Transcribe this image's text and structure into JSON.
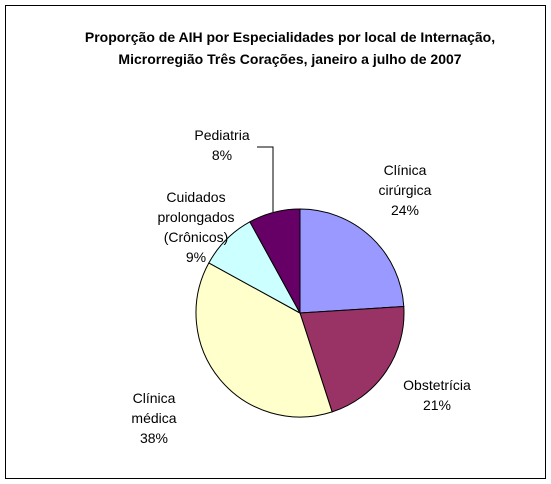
{
  "chart_data": {
    "type": "pie",
    "title": "Proporção de AIH por Especialidades por local de Internação, Microrregião Três Corações, janeiro a julho de 2007",
    "categories": [
      "Clínica cirúrgica",
      "Obstetrícia",
      "Clínica médica",
      "Cuidados prolongados (Crônicos)",
      "Pediatria"
    ],
    "values": [
      24,
      21,
      38,
      9,
      8
    ],
    "value_labels": [
      "24%",
      "21%",
      "38%",
      "9%",
      "8%"
    ],
    "colors": [
      "#9999ff",
      "#993366",
      "#ffffcc",
      "#ccffff",
      "#660066"
    ]
  }
}
